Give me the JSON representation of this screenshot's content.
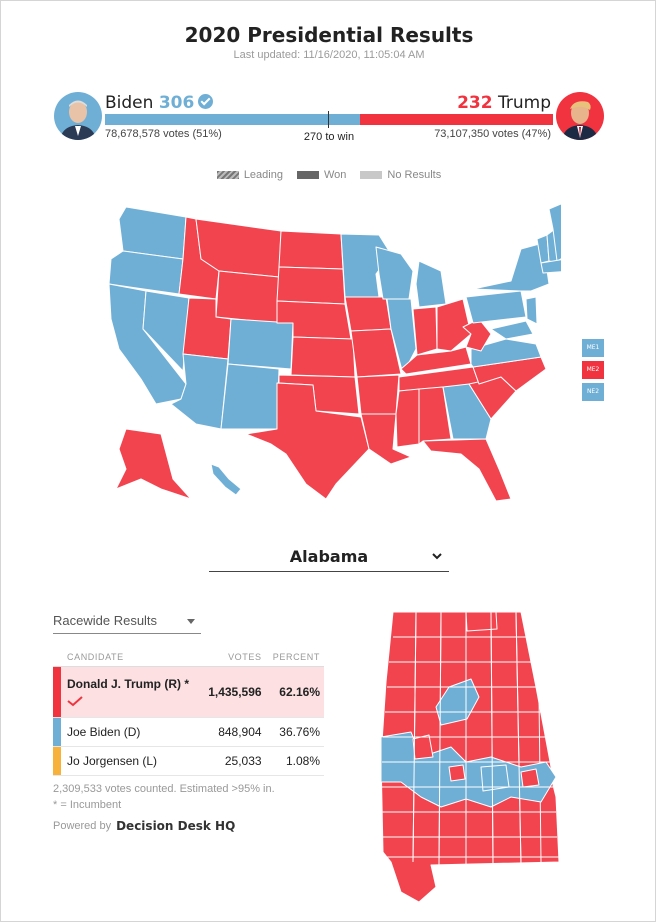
{
  "header": {
    "title": "2020 Presidential Results",
    "updated": "Last updated: 11/16/2020, 11:05:04 AM"
  },
  "candidates": {
    "biden": {
      "name": "Biden",
      "electoral_votes": "306",
      "votes_text": "78,678,578 votes (51%)",
      "color": "#6fafd6"
    },
    "trump": {
      "name": "Trump",
      "electoral_votes": "232",
      "votes_text": "73,107,350 votes (47%)",
      "color": "#f0333f"
    }
  },
  "ev_bar": {
    "threshold_label": "270 to win",
    "biden_share": 0.569,
    "trump_share": 0.431
  },
  "legend": {
    "leading": "Leading",
    "won": "Won",
    "no_results": "No Results"
  },
  "maine_districts": [
    {
      "label": "ME1",
      "color": "#6fafd6"
    },
    {
      "label": "ME2",
      "color": "#f0333f"
    },
    {
      "label": "NE2",
      "color": "#6fafd6"
    }
  ],
  "state_selector": {
    "value": "Alabama"
  },
  "results": {
    "view_selector": "Racewide Results",
    "columns": {
      "candidate": "CANDIDATE",
      "votes": "VOTES",
      "percent": "PERCENT"
    },
    "rows": [
      {
        "candidate": "Donald J. Trump (R) *",
        "votes": "1,435,596",
        "percent": "62.16%",
        "color": "#f0333f"
      },
      {
        "candidate": "Joe Biden (D)",
        "votes": "848,904",
        "percent": "36.76%",
        "color": "#6fafd6"
      },
      {
        "candidate": "Jo Jorgensen (L)",
        "votes": "25,033",
        "percent": "1.08%",
        "color": "#f7b23b"
      }
    ],
    "summary": "2,309,533 votes counted. Estimated >95% in.",
    "incumbent_note": "* = Incumbent",
    "powered_by": "Powered by",
    "provider": "Decision Desk HQ"
  }
}
